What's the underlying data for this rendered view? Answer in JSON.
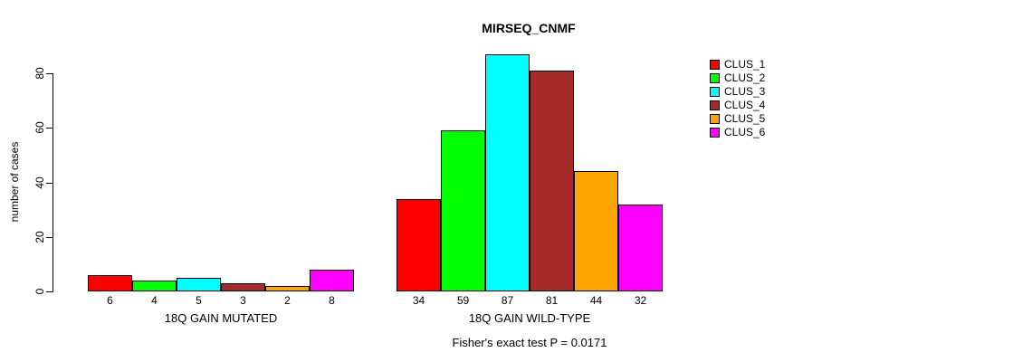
{
  "chart_data": {
    "type": "bar",
    "title": "MIRSEQ_CNMF",
    "ylabel": "number of cases",
    "ylim": [
      0,
      87
    ],
    "yticks": [
      0,
      20,
      40,
      60,
      80
    ],
    "grid": false,
    "legend_position": "topright",
    "groups": [
      {
        "label": "18Q GAIN MUTATED",
        "values": [
          6,
          4,
          5,
          3,
          2,
          8
        ]
      },
      {
        "label": "18Q GAIN WILD-TYPE",
        "values": [
          34,
          59,
          87,
          81,
          44,
          32
        ]
      }
    ],
    "series_colors": [
      "#ff0000",
      "#00ff00",
      "#00ffff",
      "#a52a2a",
      "#ffa500",
      "#ff00ff"
    ],
    "legend": [
      {
        "label": "CLUS_1",
        "color": "#ff0000"
      },
      {
        "label": "CLUS_2",
        "color": "#00ff00"
      },
      {
        "label": "CLUS_3",
        "color": "#00ffff"
      },
      {
        "label": "CLUS_4",
        "color": "#a52a2a"
      },
      {
        "label": "CLUS_5",
        "color": "#ffa500"
      },
      {
        "label": "CLUS_6",
        "color": "#ff00ff"
      }
    ],
    "annotation": "Fisher's exact test P = 0.0171"
  }
}
